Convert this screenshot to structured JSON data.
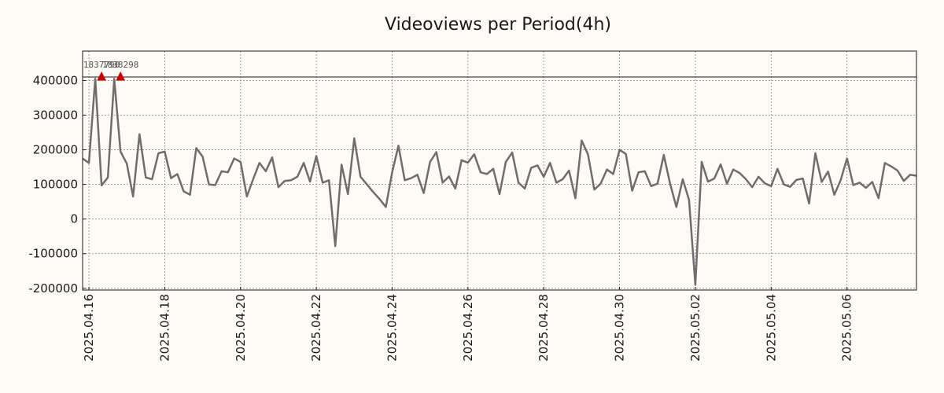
{
  "chart_data": {
    "type": "line",
    "title": "Videoviews per Period(4h)",
    "xlabel": "",
    "ylabel": "",
    "grid": true,
    "colors": {
      "background": "#fefaf6",
      "line": "#6e6e6e",
      "grid": "#8a8a8a",
      "peak_marker": "#cc0000",
      "peak_label": "#555555"
    },
    "xlim": [
      "2025-04-15T20:00",
      "2025-05-07T20:00"
    ],
    "ylim": [
      -205000,
      485000
    ],
    "y_ticks": [
      -200000,
      -100000,
      0,
      100000,
      200000,
      300000,
      400000
    ],
    "y_tick_labels": [
      "-200000",
      "-100000",
      "0",
      "100000",
      "200000",
      "300000",
      "400000"
    ],
    "x_ticks": [
      "2025-04-16",
      "2025-04-18",
      "2025-04-20",
      "2025-04-22",
      "2025-04-24",
      "2025-04-26",
      "2025-04-28",
      "2025-04-30",
      "2025-05-02",
      "2025-05-04",
      "2025-05-06"
    ],
    "x_tick_labels": [
      "2025.04.16",
      "2025.04.18",
      "2025.04.20",
      "2025.04.22",
      "2025.04.24",
      "2025.04.26",
      "2025.04.28",
      "2025.04.30",
      "2025.05.02",
      "2025.05.04",
      "2025.05.06"
    ],
    "reference_line": 410000,
    "peaks": [
      {
        "x": "2025-04-16T08:00",
        "y": 410000,
        "label": "1837790"
      },
      {
        "x": "2025-04-16T20:00",
        "y": 410000,
        "label": "1838298"
      }
    ],
    "series": [
      {
        "points": [
          [
            "2025-04-15T20:00",
            175000
          ],
          [
            "2025-04-16T00:00",
            162000
          ],
          [
            "2025-04-16T04:00",
            405000
          ],
          [
            "2025-04-16T08:00",
            97000
          ],
          [
            "2025-04-16T12:00",
            120000
          ],
          [
            "2025-04-16T16:00",
            405000
          ],
          [
            "2025-04-16T20:00",
            195000
          ],
          [
            "2025-04-17T00:00",
            160000
          ],
          [
            "2025-04-17T04:00",
            65000
          ],
          [
            "2025-04-17T08:00",
            245000
          ],
          [
            "2025-04-17T12:00",
            120000
          ],
          [
            "2025-04-17T16:00",
            115000
          ],
          [
            "2025-04-17T20:00",
            190000
          ],
          [
            "2025-04-18T00:00",
            195000
          ],
          [
            "2025-04-18T04:00",
            118000
          ],
          [
            "2025-04-18T08:00",
            130000
          ],
          [
            "2025-04-18T12:00",
            80000
          ],
          [
            "2025-04-18T16:00",
            70000
          ],
          [
            "2025-04-18T20:00",
            205000
          ],
          [
            "2025-04-19T00:00",
            180000
          ],
          [
            "2025-04-19T04:00",
            100000
          ],
          [
            "2025-04-19T08:00",
            98000
          ],
          [
            "2025-04-19T12:00",
            138000
          ],
          [
            "2025-04-19T16:00",
            135000
          ],
          [
            "2025-04-19T20:00",
            175000
          ],
          [
            "2025-04-20T00:00",
            165000
          ],
          [
            "2025-04-20T04:00",
            65000
          ],
          [
            "2025-04-20T08:00",
            115000
          ],
          [
            "2025-04-20T12:00",
            162000
          ],
          [
            "2025-04-20T16:00",
            138000
          ],
          [
            "2025-04-20T20:00",
            178000
          ],
          [
            "2025-04-21T00:00",
            92000
          ],
          [
            "2025-04-21T04:00",
            110000
          ],
          [
            "2025-04-21T08:00",
            112000
          ],
          [
            "2025-04-21T12:00",
            122000
          ],
          [
            "2025-04-21T16:00",
            162000
          ],
          [
            "2025-04-21T20:00",
            108000
          ],
          [
            "2025-04-22T00:00",
            182000
          ],
          [
            "2025-04-22T04:00",
            105000
          ],
          [
            "2025-04-22T08:00",
            112000
          ],
          [
            "2025-04-22T12:00",
            -78000
          ],
          [
            "2025-04-22T16:00",
            157000
          ],
          [
            "2025-04-22T20:00",
            72000
          ],
          [
            "2025-04-23T00:00",
            233000
          ],
          [
            "2025-04-23T04:00",
            122000
          ],
          [
            "2025-04-23T08:00",
            100000
          ],
          [
            "2025-04-23T12:00",
            78000
          ],
          [
            "2025-04-23T16:00",
            58000
          ],
          [
            "2025-04-23T20:00",
            35000
          ],
          [
            "2025-04-24T00:00",
            135000
          ],
          [
            "2025-04-24T04:00",
            212000
          ],
          [
            "2025-04-24T08:00",
            112000
          ],
          [
            "2025-04-24T12:00",
            118000
          ],
          [
            "2025-04-24T16:00",
            128000
          ],
          [
            "2025-04-24T20:00",
            75000
          ],
          [
            "2025-04-25T00:00",
            165000
          ],
          [
            "2025-04-25T04:00",
            193000
          ],
          [
            "2025-04-25T08:00",
            105000
          ],
          [
            "2025-04-25T12:00",
            123000
          ],
          [
            "2025-04-25T16:00",
            88000
          ],
          [
            "2025-04-25T20:00",
            170000
          ],
          [
            "2025-04-26T00:00",
            163000
          ],
          [
            "2025-04-26T04:00",
            187000
          ],
          [
            "2025-04-26T08:00",
            135000
          ],
          [
            "2025-04-26T12:00",
            130000
          ],
          [
            "2025-04-26T16:00",
            145000
          ],
          [
            "2025-04-26T20:00",
            72000
          ],
          [
            "2025-04-27T00:00",
            165000
          ],
          [
            "2025-04-27T04:00",
            192000
          ],
          [
            "2025-04-27T08:00",
            105000
          ],
          [
            "2025-04-27T12:00",
            88000
          ],
          [
            "2025-04-27T16:00",
            148000
          ],
          [
            "2025-04-27T20:00",
            155000
          ],
          [
            "2025-04-28T00:00",
            122000
          ],
          [
            "2025-04-28T04:00",
            162000
          ],
          [
            "2025-04-28T08:00",
            105000
          ],
          [
            "2025-04-28T12:00",
            115000
          ],
          [
            "2025-04-28T16:00",
            140000
          ],
          [
            "2025-04-28T20:00",
            60000
          ],
          [
            "2025-04-29T00:00",
            227000
          ],
          [
            "2025-04-29T04:00",
            187000
          ],
          [
            "2025-04-29T08:00",
            85000
          ],
          [
            "2025-04-29T12:00",
            102000
          ],
          [
            "2025-04-29T16:00",
            143000
          ],
          [
            "2025-04-29T20:00",
            130000
          ],
          [
            "2025-04-30T00:00",
            200000
          ],
          [
            "2025-04-30T04:00",
            188000
          ],
          [
            "2025-04-30T08:00",
            82000
          ],
          [
            "2025-04-30T12:00",
            135000
          ],
          [
            "2025-04-30T16:00",
            138000
          ],
          [
            "2025-04-30T20:00",
            95000
          ],
          [
            "2025-05-01T00:00",
            102000
          ],
          [
            "2025-05-01T04:00",
            185000
          ],
          [
            "2025-05-01T08:00",
            102000
          ],
          [
            "2025-05-01T12:00",
            35000
          ],
          [
            "2025-05-01T16:00",
            115000
          ],
          [
            "2025-05-01T20:00",
            55000
          ],
          [
            "2025-05-02T00:00",
            -190000
          ],
          [
            "2025-05-02T04:00",
            165000
          ],
          [
            "2025-05-02T08:00",
            108000
          ],
          [
            "2025-05-02T12:00",
            117000
          ],
          [
            "2025-05-02T16:00",
            158000
          ],
          [
            "2025-05-02T20:00",
            102000
          ],
          [
            "2025-05-03T00:00",
            143000
          ],
          [
            "2025-05-03T04:00",
            133000
          ],
          [
            "2025-05-03T08:00",
            115000
          ],
          [
            "2025-05-03T12:00",
            92000
          ],
          [
            "2025-05-03T16:00",
            122000
          ],
          [
            "2025-05-03T20:00",
            103000
          ],
          [
            "2025-05-04T00:00",
            95000
          ],
          [
            "2025-05-04T04:00",
            145000
          ],
          [
            "2025-05-04T08:00",
            100000
          ],
          [
            "2025-05-04T12:00",
            93000
          ],
          [
            "2025-05-04T16:00",
            113000
          ],
          [
            "2025-05-04T20:00",
            117000
          ],
          [
            "2025-05-05T00:00",
            45000
          ],
          [
            "2025-05-05T04:00",
            190000
          ],
          [
            "2025-05-05T08:00",
            107000
          ],
          [
            "2025-05-05T12:00",
            137000
          ],
          [
            "2025-05-05T16:00",
            70000
          ],
          [
            "2025-05-05T20:00",
            112000
          ],
          [
            "2025-05-06T00:00",
            175000
          ],
          [
            "2025-05-06T04:00",
            98000
          ],
          [
            "2025-05-06T08:00",
            105000
          ],
          [
            "2025-05-06T12:00",
            90000
          ],
          [
            "2025-05-06T16:00",
            107000
          ],
          [
            "2025-05-06T20:00",
            60000
          ],
          [
            "2025-05-07T00:00",
            162000
          ],
          [
            "2025-05-07T04:00",
            152000
          ],
          [
            "2025-05-07T08:00",
            140000
          ],
          [
            "2025-05-07T12:00",
            110000
          ],
          [
            "2025-05-07T16:00",
            128000
          ],
          [
            "2025-05-07T20:00",
            125000
          ]
        ]
      }
    ]
  }
}
